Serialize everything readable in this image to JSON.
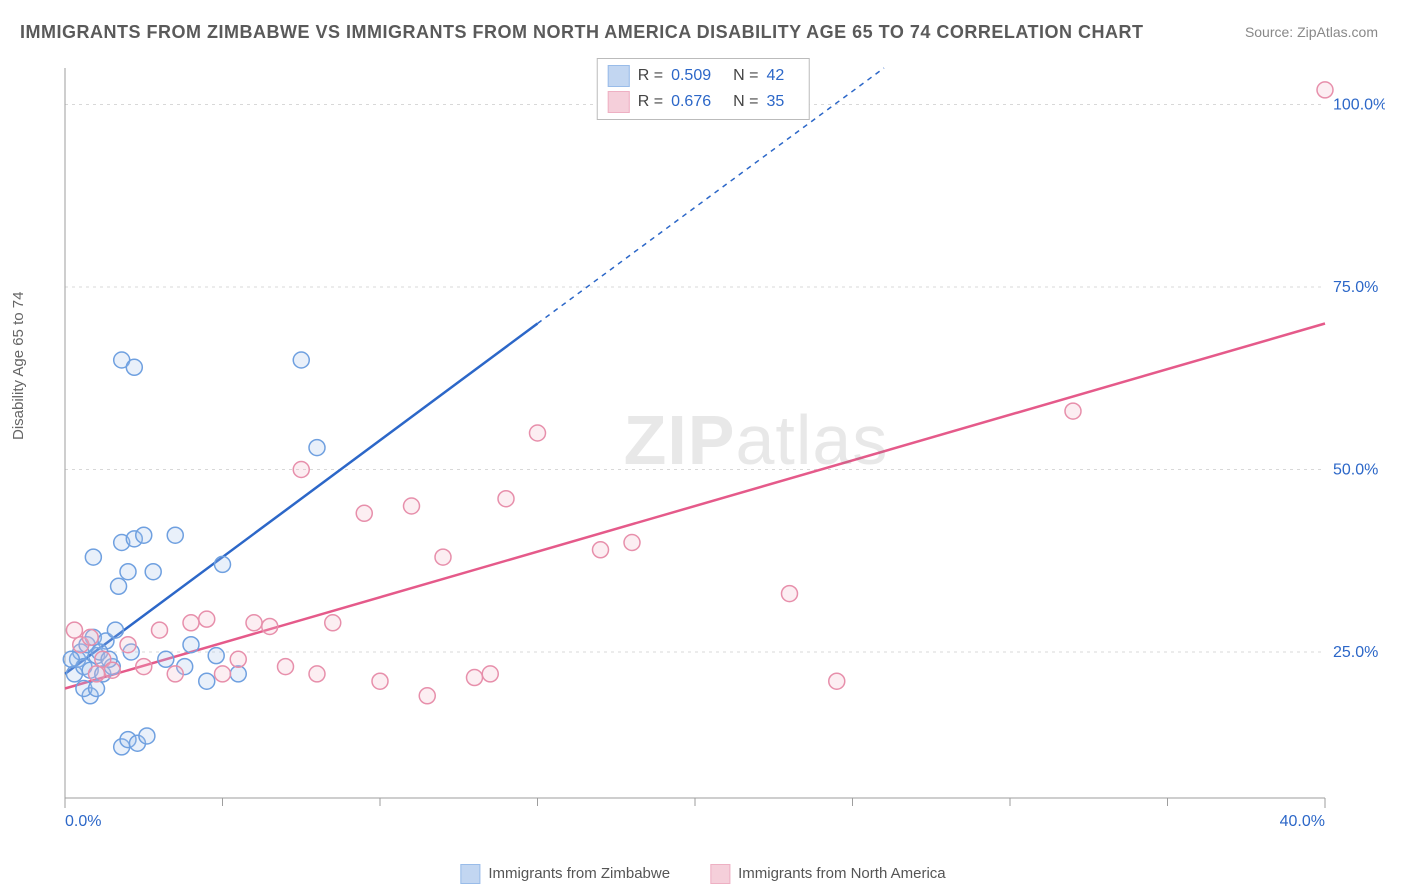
{
  "title": "IMMIGRANTS FROM ZIMBABWE VS IMMIGRANTS FROM NORTH AMERICA DISABILITY AGE 65 TO 74 CORRELATION CHART",
  "source": "Source: ZipAtlas.com",
  "ylabel": "Disability Age 65 to 74",
  "watermark_bold": "ZIP",
  "watermark_rest": "atlas",
  "chart": {
    "type": "scatter",
    "background_color": "#ffffff",
    "grid_color": "#d8d8d8",
    "axis_color": "#9e9e9e",
    "tick_label_color": "#2c67c8",
    "tick_label_fontsize": 16,
    "xlim": [
      0,
      40
    ],
    "ylim": [
      5,
      105
    ],
    "x_ticks_major": [
      0,
      40
    ],
    "x_ticks_minor": [
      5,
      10,
      15,
      20,
      25,
      30,
      35
    ],
    "y_ticks_major": [
      25,
      50,
      75,
      100
    ],
    "x_tick_labels": {
      "0": "0.0%",
      "40": "40.0%"
    },
    "y_tick_labels": {
      "25": "25.0%",
      "50": "50.0%",
      "75": "75.0%",
      "100": "100.0%"
    },
    "marker_radius": 8,
    "marker_stroke_width": 1.5,
    "marker_fill_opacity": 0.25,
    "trend_line_width": 2.5,
    "trend_dash": "5,5"
  },
  "series": [
    {
      "name": "Immigrants from Zimbabwe",
      "color_stroke": "#6fa0e0",
      "color_fill": "#a9c5ec",
      "trend_color": "#2c67c8",
      "R": "0.509",
      "N": "42",
      "trend": {
        "x1": 0,
        "y1": 22,
        "x2_solid": 15,
        "y2_solid": 70,
        "x2_dash": 26,
        "y2_dash": 105
      },
      "points": [
        [
          0.3,
          22
        ],
        [
          0.4,
          24
        ],
        [
          0.5,
          25
        ],
        [
          0.6,
          23
        ],
        [
          0.7,
          26
        ],
        [
          0.8,
          22.5
        ],
        [
          0.9,
          27
        ],
        [
          1.0,
          24.5
        ],
        [
          1.2,
          22
        ],
        [
          1.3,
          26.5
        ],
        [
          1.5,
          23
        ],
        [
          1.6,
          28
        ],
        [
          1.8,
          40
        ],
        [
          2.0,
          36
        ],
        [
          0.8,
          19
        ],
        [
          0.6,
          20
        ],
        [
          1.1,
          25
        ],
        [
          1.4,
          24
        ],
        [
          2.2,
          40.5
        ],
        [
          2.5,
          41
        ],
        [
          2.8,
          36
        ],
        [
          3.5,
          41
        ],
        [
          5.0,
          37
        ],
        [
          1.8,
          65
        ],
        [
          2.2,
          64
        ],
        [
          7.5,
          65
        ],
        [
          8.0,
          53
        ],
        [
          5.5,
          22
        ],
        [
          1.8,
          12
        ],
        [
          2.0,
          13
        ],
        [
          2.3,
          12.5
        ],
        [
          2.6,
          13.5
        ],
        [
          4.5,
          21
        ],
        [
          3.2,
          24
        ],
        [
          3.8,
          23
        ],
        [
          4.0,
          26
        ],
        [
          4.8,
          24.5
        ],
        [
          0.2,
          24
        ],
        [
          0.9,
          38
        ],
        [
          1.0,
          20
        ],
        [
          1.7,
          34
        ],
        [
          2.1,
          25
        ]
      ]
    },
    {
      "name": "Immigrants from North America",
      "color_stroke": "#e78fab",
      "color_fill": "#f2bccb",
      "trend_color": "#e55a8a",
      "R": "0.676",
      "N": "35",
      "trend": {
        "x1": 0,
        "y1": 20,
        "x2_solid": 40,
        "y2_solid": 70,
        "x2_dash": 40,
        "y2_dash": 70
      },
      "points": [
        [
          0.3,
          28
        ],
        [
          0.5,
          26
        ],
        [
          0.8,
          27
        ],
        [
          1.0,
          22
        ],
        [
          1.2,
          24
        ],
        [
          1.5,
          22.5
        ],
        [
          2.0,
          26
        ],
        [
          2.5,
          23
        ],
        [
          3.0,
          28
        ],
        [
          3.5,
          22
        ],
        [
          4.0,
          29
        ],
        [
          4.5,
          29.5
        ],
        [
          5.0,
          22
        ],
        [
          5.5,
          24
        ],
        [
          6.0,
          29
        ],
        [
          6.5,
          28.5
        ],
        [
          7.0,
          23
        ],
        [
          7.5,
          50
        ],
        [
          8.0,
          22
        ],
        [
          8.5,
          29
        ],
        [
          9.5,
          44
        ],
        [
          10.0,
          21
        ],
        [
          11.0,
          45
        ],
        [
          11.5,
          19
        ],
        [
          12.0,
          38
        ],
        [
          13.0,
          21.5
        ],
        [
          13.5,
          22
        ],
        [
          14.0,
          46
        ],
        [
          15.0,
          55
        ],
        [
          17.0,
          39
        ],
        [
          18.0,
          40
        ],
        [
          23.0,
          33
        ],
        [
          24.5,
          21
        ],
        [
          32.0,
          58
        ],
        [
          40.0,
          102
        ]
      ]
    }
  ],
  "legend_stats_labels": {
    "R": "R =",
    "N": "N ="
  },
  "legend_bottom": [
    {
      "series": 0
    },
    {
      "series": 1
    }
  ]
}
